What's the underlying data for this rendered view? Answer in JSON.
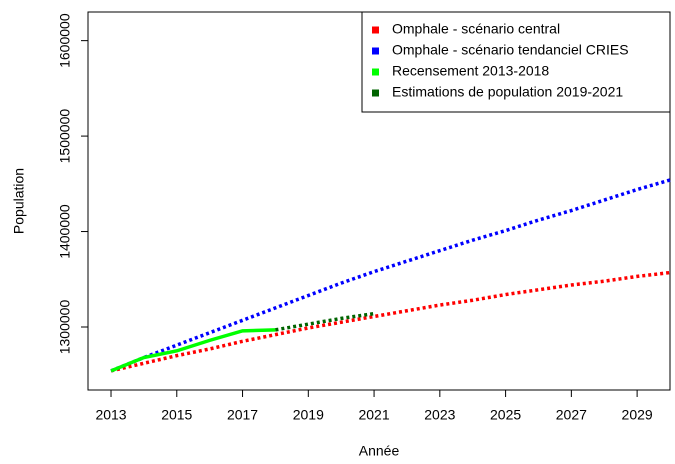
{
  "chart_data": {
    "type": "line",
    "x_label": "Année",
    "y_label": "Population",
    "x": [
      2013,
      2014,
      2015,
      2016,
      2017,
      2018,
      2019,
      2020,
      2021,
      2022,
      2023,
      2024,
      2025,
      2026,
      2027,
      2028,
      2029,
      2030
    ],
    "series": [
      {
        "name": "Omphale - scénario central",
        "color": "#ff0000",
        "dashed": true,
        "values": [
          1254000,
          1262000,
          1270000,
          1277000,
          1285000,
          1292000,
          1299000,
          1305000,
          1311000,
          1317000,
          1323000,
          1328000,
          1334000,
          1339000,
          1344000,
          1348000,
          1353000,
          1357000
        ]
      },
      {
        "name": "Omphale - scénario tendanciel CRIES",
        "color": "#0000ff",
        "dashed": true,
        "values": [
          1254000,
          1268000,
          1281000,
          1294000,
          1307000,
          1320000,
          1333000,
          1346000,
          1358000,
          1369000,
          1380000,
          1391000,
          1401000,
          1412000,
          1422000,
          1433000,
          1444000,
          1454000
        ]
      },
      {
        "name": "Recensement 2013-2018",
        "color": "#00ff00",
        "dashed": false,
        "values": [
          1254000,
          1268000,
          1275000,
          1286000,
          1296000,
          1297000,
          null,
          null,
          null,
          null,
          null,
          null,
          null,
          null,
          null,
          null,
          null,
          null
        ]
      },
      {
        "name": "Estimations de population 2019-2021",
        "color": "#006400",
        "dashed": true,
        "values": [
          null,
          null,
          null,
          null,
          null,
          1297000,
          1303000,
          1309000,
          1314000,
          null,
          null,
          null,
          null,
          null,
          null,
          null,
          null,
          null
        ]
      }
    ],
    "xlim": [
      2012.3,
      2030
    ],
    "xticks": [
      2013,
      2015,
      2017,
      2019,
      2021,
      2023,
      2025,
      2027,
      2029
    ],
    "ylim": [
      1234000,
      1630000
    ],
    "yticks": [
      1300000,
      1400000,
      1500000,
      1600000
    ],
    "legend": "top-right"
  }
}
